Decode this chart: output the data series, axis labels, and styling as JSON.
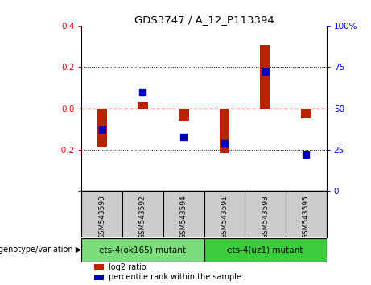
{
  "title": "GDS3747 / A_12_P113394",
  "samples": [
    "GSM543590",
    "GSM543592",
    "GSM543594",
    "GSM543591",
    "GSM543593",
    "GSM543595"
  ],
  "log2_ratio": [
    -0.185,
    0.03,
    -0.06,
    -0.215,
    0.305,
    -0.05
  ],
  "percentile_rank": [
    37,
    60,
    33,
    29,
    72,
    22
  ],
  "groups": [
    {
      "label": "ets-4(ok165) mutant",
      "samples": [
        0,
        1,
        2
      ],
      "color": "#7cdd7c"
    },
    {
      "label": "ets-4(uz1) mutant",
      "samples": [
        3,
        4,
        5
      ],
      "color": "#3ccc3c"
    }
  ],
  "ylim_left": [
    -0.4,
    0.4
  ],
  "ylim_right": [
    0,
    100
  ],
  "yticks_left": [
    -0.4,
    -0.2,
    0.0,
    0.2,
    0.4
  ],
  "yticks_right": [
    0,
    25,
    50,
    75,
    100
  ],
  "bar_color": "#bb2200",
  "dot_color": "#0000bb",
  "bg_color": "#ffffff",
  "plot_bg": "#ffffff",
  "label_bg": "#cccccc",
  "zero_line_color": "#cc0000",
  "legend_bar": "log2 ratio",
  "legend_dot": "percentile rank within the sample",
  "bar_width": 0.25,
  "dot_size": 40
}
